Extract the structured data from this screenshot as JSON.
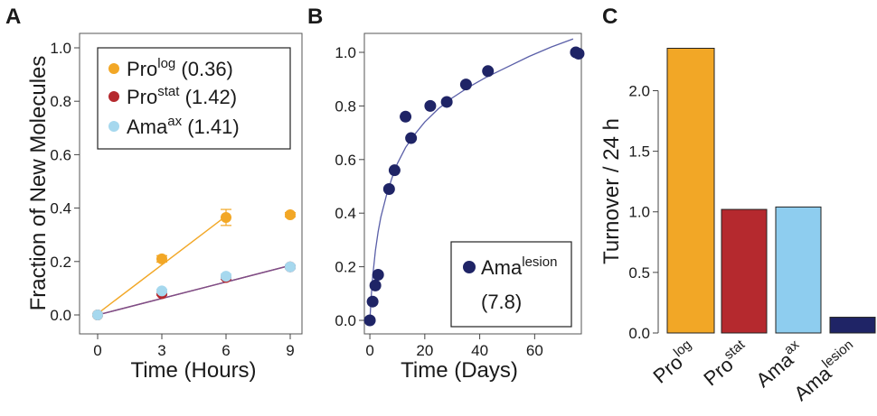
{
  "chart_data": [
    {
      "panel": "A",
      "type": "line",
      "xlabel": "Time (Hours)",
      "ylabel": "Fraction of New Molecules",
      "xlim": [
        0,
        9
      ],
      "ylim": [
        0,
        1.0
      ],
      "xticks": [
        0,
        3,
        6,
        9
      ],
      "yticks": [
        0.0,
        0.2,
        0.4,
        0.6,
        0.8,
        1.0
      ],
      "grid": false,
      "legend": "top-left",
      "series": [
        {
          "name": "Pro",
          "sup": "log",
          "value_label": "(0.36)",
          "color": "#f2a726",
          "x": [
            0,
            3,
            6,
            9
          ],
          "y": [
            0.0,
            0.21,
            0.365,
            0.375
          ],
          "err": [
            0,
            0.012,
            0.03,
            0.008
          ],
          "fit_x": [
            0,
            6
          ],
          "fit_y": [
            0.005,
            0.37
          ]
        },
        {
          "name": "Pro",
          "sup": "stat",
          "value_label": "(1.42)",
          "color": "#b5292e",
          "x": [
            0,
            3,
            6,
            9
          ],
          "y": [
            0.0,
            0.08,
            0.14,
            0.18
          ],
          "err": [
            0,
            0.006,
            0.006,
            0.006
          ],
          "fit_x": [
            0,
            9
          ],
          "fit_y": [
            0.0,
            0.185
          ]
        },
        {
          "name": "Ama",
          "sup": "ax",
          "value_label": "(1.41)",
          "color": "#a6d8ee",
          "x": [
            0,
            3,
            6,
            9
          ],
          "y": [
            0.0,
            0.09,
            0.145,
            0.18
          ],
          "err": [
            0,
            0.006,
            0.008,
            0.008
          ],
          "fit_x": [
            0,
            9
          ],
          "fit_y": [
            0.0,
            0.185
          ]
        }
      ]
    },
    {
      "panel": "B",
      "type": "scatter",
      "xlabel": "Time (Days)",
      "ylabel": "",
      "xlim": [
        -2,
        77
      ],
      "ylim": [
        0,
        1.05
      ],
      "xticks": [
        0,
        20,
        40,
        60
      ],
      "yticks": [
        0.0,
        0.2,
        0.4,
        0.6,
        0.8,
        1.0
      ],
      "grid": false,
      "legend": "bottom-right",
      "series": [
        {
          "name": "Ama",
          "sup": "lesion",
          "value_label": "(7.8)",
          "color": "#1f2466",
          "x": [
            0,
            1,
            2,
            3,
            7,
            9,
            13,
            15,
            22,
            28,
            35,
            43,
            75,
            76
          ],
          "y": [
            0.0,
            0.07,
            0.13,
            0.17,
            0.49,
            0.56,
            0.76,
            0.68,
            0.8,
            0.815,
            0.88,
            0.93,
            1.0,
            0.995
          ],
          "fit_x": [
            0,
            0.5,
            1,
            2,
            3,
            4,
            6,
            8,
            10,
            13,
            16,
            20,
            25,
            30,
            36,
            42,
            50,
            58,
            66,
            74
          ],
          "fit_y": [
            0.0,
            0.09,
            0.16,
            0.26,
            0.33,
            0.385,
            0.465,
            0.53,
            0.585,
            0.645,
            0.69,
            0.74,
            0.79,
            0.83,
            0.87,
            0.905,
            0.945,
            0.985,
            1.02,
            1.05
          ]
        }
      ]
    },
    {
      "panel": "C",
      "type": "bar",
      "ylabel": "Turnover / 24 h",
      "ylim": [
        0,
        2.4
      ],
      "yticks": [
        0.0,
        0.5,
        1.0,
        1.5,
        2.0
      ],
      "grid": false,
      "categories": [
        {
          "name": "Pro",
          "sup": "log"
        },
        {
          "name": "Pro",
          "sup": "stat"
        },
        {
          "name": "Ama",
          "sup": "ax"
        },
        {
          "name": "Ama",
          "sup": "lesion"
        }
      ],
      "values": [
        2.35,
        1.02,
        1.04,
        0.13
      ],
      "colors": [
        "#f2a726",
        "#b5292e",
        "#8ecdef",
        "#1f2466"
      ]
    }
  ]
}
